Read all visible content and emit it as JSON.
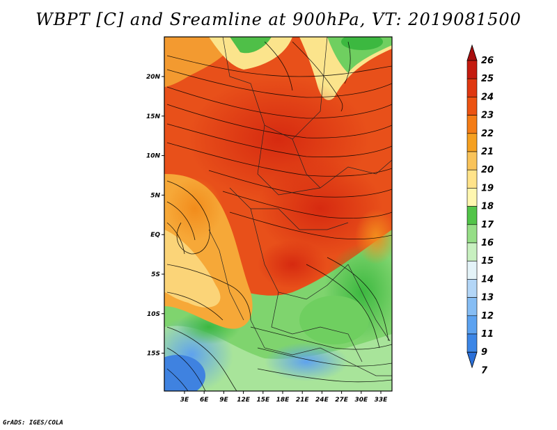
{
  "title": "WBPT [C] and Sreamline at 900hPa, VT: 2019081500",
  "footer": "GrADS: IGES/COLA",
  "map": {
    "lon_labels": [
      "3E",
      "6E",
      "9E",
      "12E",
      "15E",
      "18E",
      "21E",
      "24E",
      "27E",
      "30E",
      "33E"
    ],
    "lat_labels": [
      "20N",
      "15N",
      "10N",
      "5N",
      "EQ",
      "5S",
      "10S",
      "15S"
    ],
    "lon_range": [
      0,
      34
    ],
    "lat_range": [
      -20,
      25
    ]
  },
  "colorbar": {
    "levels": [
      "7",
      "9",
      "11",
      "12",
      "13",
      "14",
      "15",
      "16",
      "17",
      "18",
      "19",
      "20",
      "21",
      "22",
      "23",
      "24",
      "25",
      "26"
    ],
    "colors": [
      "#2a6fd8",
      "#3c86e6",
      "#5ca2f0",
      "#86bdf4",
      "#b3d6f7",
      "#e4f3f8",
      "#c8f0c0",
      "#96de87",
      "#52c449",
      "#fff7b0",
      "#ffe38a",
      "#f9c35a",
      "#f5a020",
      "#f47c16",
      "#ec5312",
      "#df3710",
      "#c41b0f",
      "#a80e0e"
    ]
  }
}
